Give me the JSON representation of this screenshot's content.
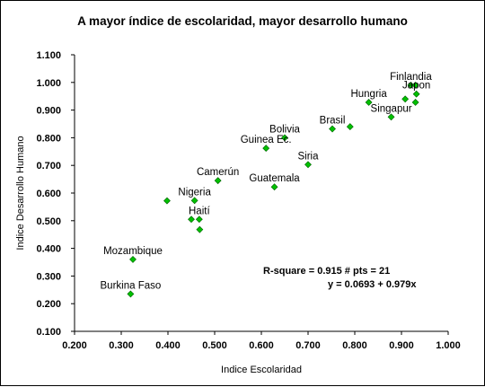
{
  "chart_data": {
    "type": "scatter",
    "title": "A mayor índice de escolaridad, mayor desarrollo humano",
    "xlabel": "Indice Escolaridad",
    "ylabel": "Indice Desarrollo Humano",
    "xlim": [
      0.2,
      1.0
    ],
    "ylim": [
      0.1,
      1.1
    ],
    "x_ticks": [
      "0.200",
      "0.300",
      "0.400",
      "0.500",
      "0.600",
      "0.700",
      "0.800",
      "0.900",
      "1.000"
    ],
    "y_ticks": [
      "0.100",
      "0.200",
      "0.300",
      "0.400",
      "0.500",
      "0.600",
      "0.700",
      "0.800",
      "0.900",
      "1.000",
      "1.100"
    ],
    "grid": false,
    "marker_color": "#00c000",
    "marker_outline": "#006000",
    "points": [
      {
        "x": 0.32,
        "y": 0.235,
        "label": "Burkina Faso"
      },
      {
        "x": 0.325,
        "y": 0.36,
        "label": "Mozambique"
      },
      {
        "x": 0.398,
        "y": 0.572,
        "label": ""
      },
      {
        "x": 0.45,
        "y": 0.505,
        "label": ""
      },
      {
        "x": 0.457,
        "y": 0.573,
        "label": "Nigeria"
      },
      {
        "x": 0.467,
        "y": 0.505,
        "label": "Haití"
      },
      {
        "x": 0.468,
        "y": 0.468,
        "label": ""
      },
      {
        "x": 0.507,
        "y": 0.645,
        "label": "Camerún"
      },
      {
        "x": 0.61,
        "y": 0.762,
        "label": "Guinea Ec."
      },
      {
        "x": 0.628,
        "y": 0.622,
        "label": "Guatemala"
      },
      {
        "x": 0.65,
        "y": 0.8,
        "label": "Bolivia"
      },
      {
        "x": 0.7,
        "y": 0.703,
        "label": "Siria"
      },
      {
        "x": 0.752,
        "y": 0.832,
        "label": "Brasil"
      },
      {
        "x": 0.79,
        "y": 0.84,
        "label": ""
      },
      {
        "x": 0.83,
        "y": 0.928,
        "label": "Hungria"
      },
      {
        "x": 0.878,
        "y": 0.875,
        "label": "Singapur"
      },
      {
        "x": 0.908,
        "y": 0.94,
        "label": ""
      },
      {
        "x": 0.92,
        "y": 0.99,
        "label": "Finlandia"
      },
      {
        "x": 0.93,
        "y": 0.99,
        "label": ""
      },
      {
        "x": 0.932,
        "y": 0.958,
        "label": "Japon"
      },
      {
        "x": 0.93,
        "y": 0.928,
        "label": ""
      }
    ],
    "stats": {
      "line1": "R-square = 0.915   # pts = 21",
      "line2": "y = 0.0693 + 0.979x"
    }
  }
}
